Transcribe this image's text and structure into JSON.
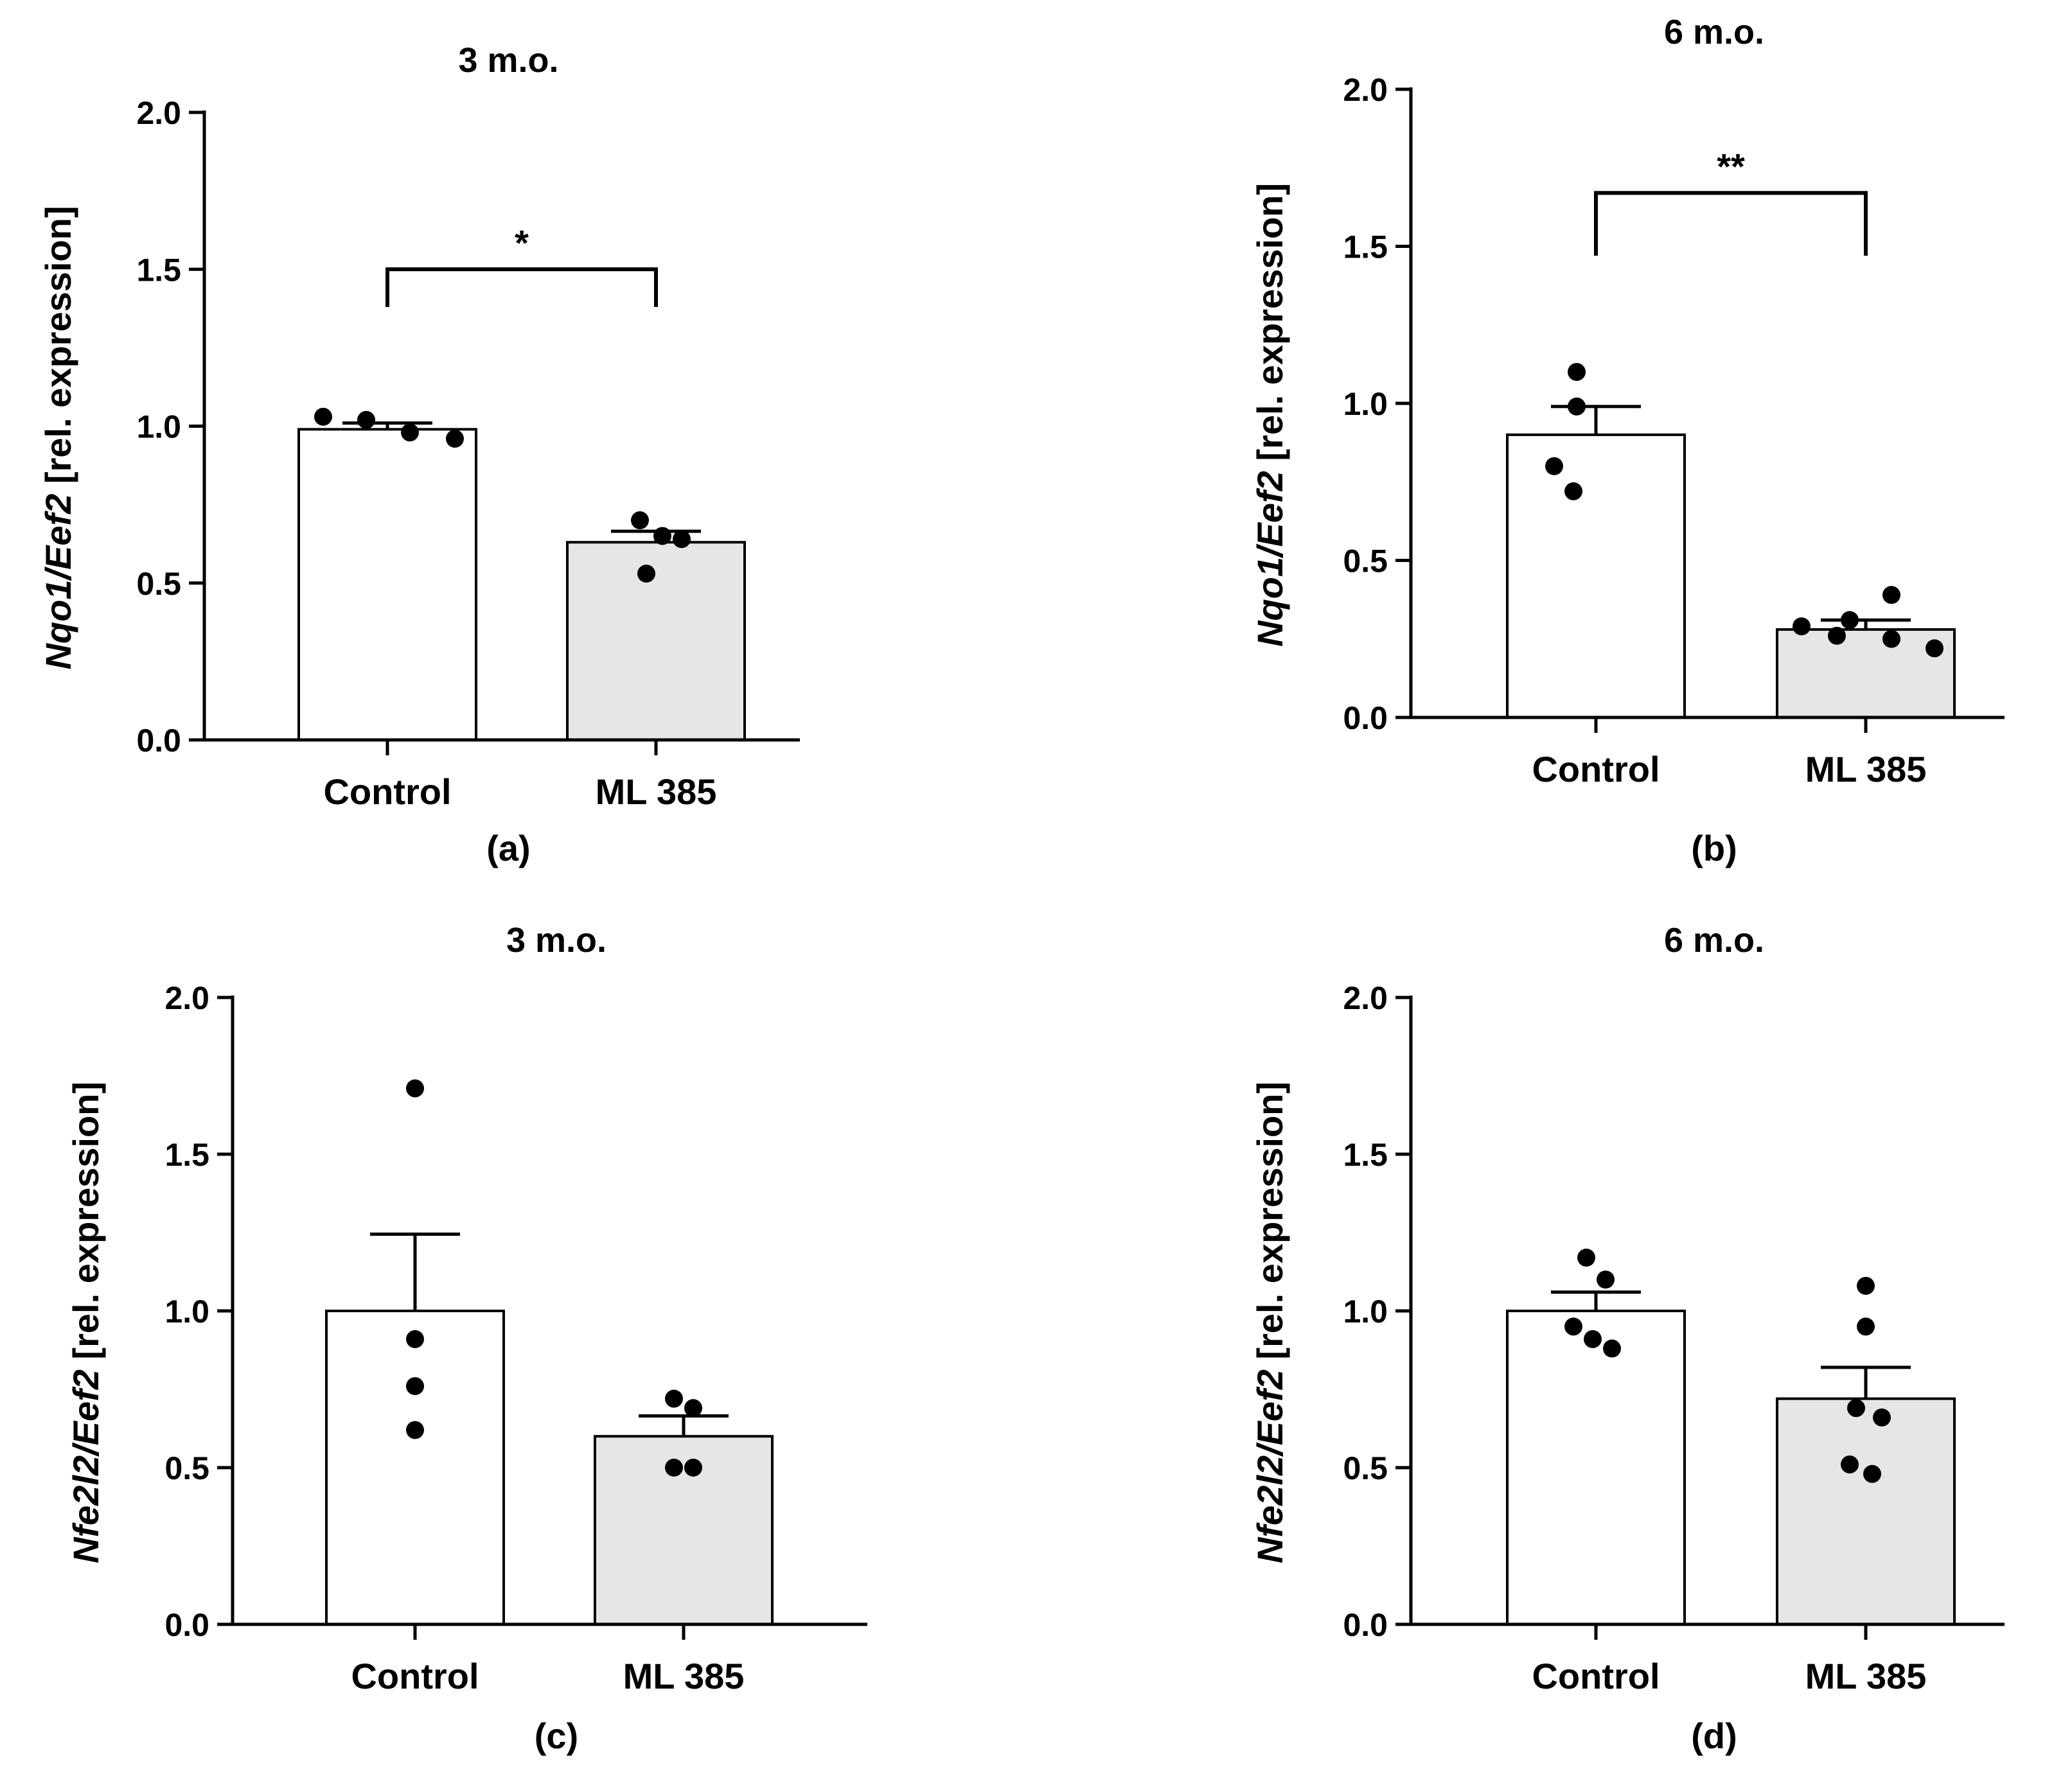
{
  "chart_data": [
    {
      "type": "bar",
      "id": "a",
      "title": "3 m.o.",
      "panel_label": "(a)",
      "ylabel_gene": "Nqo1/Eef2",
      "ylabel_unit": " [rel. expression]",
      "ylim": [
        0,
        2.0
      ],
      "yticks": [
        "0.0",
        "0.5",
        "1.0",
        "1.5",
        "2.0"
      ],
      "categories": [
        "Control",
        "ML 385"
      ],
      "values": [
        0.99,
        0.63
      ],
      "sem": [
        0.02,
        0.035
      ],
      "bar_colors": [
        "#ffffff",
        "#e6e6e6"
      ],
      "points": [
        [
          1.03,
          1.02,
          0.98,
          0.96
        ],
        [
          0.7,
          0.65,
          0.64,
          0.53
        ]
      ],
      "significance": {
        "label": "*",
        "y": 1.5,
        "drop": 0.12
      }
    },
    {
      "type": "bar",
      "id": "b",
      "title": "6 m.o.",
      "panel_label": "(b)",
      "ylabel_gene": "Nqo1/Eef2",
      "ylabel_unit": " [rel. expression]",
      "ylim": [
        0,
        2.0
      ],
      "yticks": [
        "0.0",
        "0.5",
        "1.0",
        "1.5",
        "2.0"
      ],
      "categories": [
        "Control",
        "ML 385"
      ],
      "values": [
        0.9,
        0.28
      ],
      "sem": [
        0.09,
        0.03
      ],
      "bar_colors": [
        "#ffffff",
        "#e6e6e6"
      ],
      "points": [
        [
          1.1,
          0.99,
          0.8,
          0.72
        ],
        [
          0.29,
          0.31,
          0.26,
          0.39,
          0.25,
          0.22
        ]
      ],
      "significance": {
        "label": "**",
        "y": 1.67,
        "drop": 0.2
      }
    },
    {
      "type": "bar",
      "id": "c",
      "title": "3 m.o.",
      "panel_label": "(c)",
      "ylabel_gene": "Nfe2l2/Eef2",
      "ylabel_unit": " [rel. expression]",
      "ylim": [
        0,
        2.0
      ],
      "yticks": [
        "0.0",
        "0.5",
        "1.0",
        "1.5",
        "2.0"
      ],
      "categories": [
        "Control",
        "ML 385"
      ],
      "values": [
        1.0,
        0.6
      ],
      "sem": [
        0.245,
        0.065
      ],
      "bar_colors": [
        "#ffffff",
        "#e6e6e6"
      ],
      "points": [
        [
          1.71,
          0.91,
          0.76,
          0.62
        ],
        [
          0.72,
          0.69,
          0.5,
          0.5
        ]
      ],
      "significance": null
    },
    {
      "type": "bar",
      "id": "d",
      "title": "6 m.o.",
      "panel_label": "(d)",
      "ylabel_gene": "Nfe2l2/Eef2",
      "ylabel_unit": " [rel. expression]",
      "ylim": [
        0,
        2.0
      ],
      "yticks": [
        "0.0",
        "0.5",
        "1.0",
        "1.5",
        "2.0"
      ],
      "categories": [
        "Control",
        "ML 385"
      ],
      "values": [
        1.0,
        0.72
      ],
      "sem": [
        0.06,
        0.1
      ],
      "bar_colors": [
        "#ffffff",
        "#e6e6e6"
      ],
      "points": [
        [
          1.17,
          1.1,
          0.95,
          0.91,
          0.88
        ],
        [
          1.08,
          0.95,
          0.69,
          0.66,
          0.51,
          0.48
        ]
      ],
      "significance": null
    }
  ]
}
